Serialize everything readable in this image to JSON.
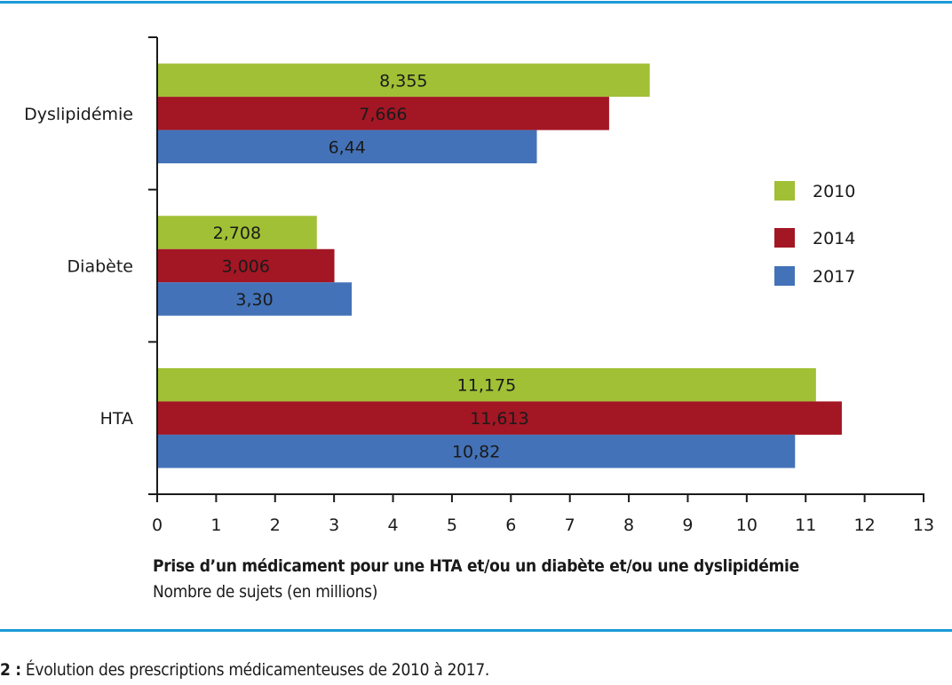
{
  "chart_data": {
    "type": "bar",
    "orientation": "horizontal",
    "title": "",
    "categories": [
      "Dyslipidémie",
      "Diabète",
      "HTA"
    ],
    "series": [
      {
        "name": "2010",
        "color": "#a1c035",
        "values": [
          8.355,
          2.708,
          11.175
        ],
        "labels": [
          "8,355",
          "2,708",
          "11,175"
        ]
      },
      {
        "name": "2014",
        "color": "#a31624",
        "values": [
          7.666,
          3.006,
          11.613
        ],
        "labels": [
          "7,666",
          "3,006",
          "11,613"
        ]
      },
      {
        "name": "2017",
        "color": "#4372b8",
        "values": [
          6.44,
          3.3,
          10.82
        ],
        "labels": [
          "6,44",
          "3,30",
          "10,82"
        ]
      }
    ],
    "xlabel": "Prise d’un médicament pour une HTA et/ou un diabète et/ou une dyslipidémie",
    "xlabel_sub": "Nombre de sujets (en millions)",
    "ylabel": "",
    "xlim": [
      0,
      13
    ],
    "xticks": [
      "0",
      "1",
      "2",
      "3",
      "4",
      "5",
      "6",
      "7",
      "8",
      "9",
      "10",
      "11",
      "12",
      "13"
    ],
    "grid": false,
    "legend": {
      "position": "right",
      "entries": [
        "2010",
        "2014",
        "2017"
      ]
    }
  },
  "caption": {
    "number": "2 :",
    "text": " Évolution des prescriptions médicamenteuses de 2010 à 2017."
  },
  "colors": {
    "rule": "#1a9ad6",
    "axis": "#1a1a1a"
  }
}
